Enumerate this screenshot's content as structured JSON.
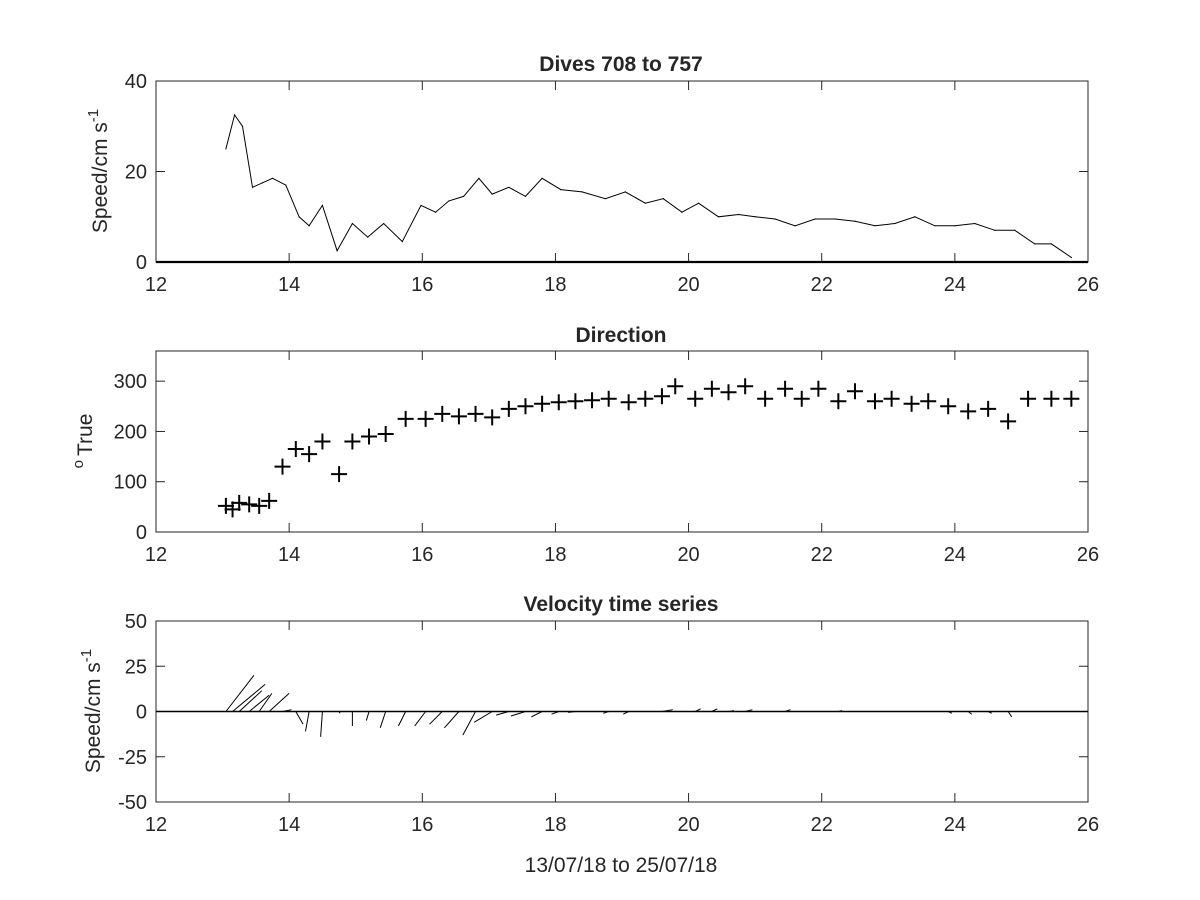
{
  "chart_data": [
    {
      "type": "line",
      "title": "Dives 708 to 757",
      "ylabel": "Speed/cm s",
      "ylabel_superscript": "-1",
      "xlabel": "",
      "xlim": [
        12,
        26
      ],
      "ylim": [
        0,
        40
      ],
      "xticks": [
        "12",
        "14",
        "16",
        "18",
        "20",
        "22",
        "24",
        "26"
      ],
      "yticks": [
        "0",
        "20",
        "40"
      ],
      "grid": false,
      "color": "#000000",
      "series": [
        {
          "x": [
            13.05,
            13.18,
            13.3,
            13.45,
            13.6,
            13.75,
            13.95,
            14.15,
            14.3,
            14.5,
            14.72,
            14.95,
            15.18,
            15.42,
            15.7,
            15.98,
            16.2,
            16.4,
            16.62,
            16.85,
            17.05,
            17.3,
            17.55,
            17.8,
            18.08,
            18.4,
            18.75,
            19.05,
            19.35,
            19.62,
            19.9,
            20.15,
            20.45,
            20.75,
            21.0,
            21.3,
            21.6,
            21.9,
            22.2,
            22.5,
            22.8,
            23.1,
            23.4,
            23.7,
            24.0,
            24.3,
            24.6,
            24.9,
            25.2,
            25.45,
            25.75
          ],
          "values": [
            25,
            32.5,
            30,
            16.5,
            17.5,
            18.5,
            17,
            10,
            8,
            12.5,
            2.5,
            8.5,
            5.5,
            8.5,
            4.5,
            12.5,
            11,
            13.5,
            14.5,
            18.5,
            15,
            16.5,
            14.5,
            18.5,
            16,
            15.5,
            14,
            15.5,
            13,
            14,
            11,
            13,
            10,
            10.5,
            10,
            9.5,
            8,
            9.5,
            9.5,
            9,
            8,
            8.5,
            10,
            8,
            8,
            8.5,
            7,
            7,
            4,
            4,
            1
          ]
        }
      ]
    },
    {
      "type": "scatter",
      "title": "Direction",
      "ylabel": "True",
      "ylabel_prefix_superscript": "o",
      "xlabel": "",
      "xlim": [
        12,
        26
      ],
      "ylim": [
        0,
        360
      ],
      "xticks": [
        "12",
        "14",
        "16",
        "18",
        "20",
        "22",
        "24",
        "26"
      ],
      "yticks": [
        "0",
        "100",
        "200",
        "300"
      ],
      "grid": false,
      "marker": "+",
      "color": "#000000",
      "series": [
        {
          "x": [
            13.05,
            13.15,
            13.25,
            13.4,
            13.55,
            13.7,
            13.9,
            14.1,
            14.3,
            14.5,
            14.75,
            14.95,
            15.2,
            15.45,
            15.75,
            16.05,
            16.3,
            16.55,
            16.8,
            17.05,
            17.3,
            17.55,
            17.8,
            18.05,
            18.3,
            18.55,
            18.8,
            19.1,
            19.35,
            19.6,
            19.8,
            20.1,
            20.35,
            20.6,
            20.85,
            21.15,
            21.45,
            21.7,
            21.95,
            22.25,
            22.5,
            22.8,
            23.05,
            23.35,
            23.6,
            23.9,
            24.2,
            24.5,
            24.8,
            25.1,
            25.45,
            25.75
          ],
          "values": [
            52,
            45,
            58,
            55,
            52,
            62,
            130,
            165,
            155,
            180,
            115,
            180,
            190,
            195,
            225,
            225,
            235,
            230,
            235,
            228,
            245,
            250,
            255,
            258,
            260,
            262,
            265,
            258,
            265,
            270,
            290,
            265,
            285,
            278,
            290,
            265,
            285,
            265,
            285,
            260,
            280,
            260,
            265,
            255,
            260,
            250,
            240,
            245,
            220,
            265,
            265,
            265
          ]
        }
      ]
    },
    {
      "type": "quiver",
      "title": "Velocity time series",
      "ylabel": "Speed/cm s",
      "ylabel_superscript": "-1",
      "xlabel": "13/07/18 to 25/07/18",
      "xlim": [
        12,
        26
      ],
      "ylim": [
        -50,
        50
      ],
      "xticks": [
        "12",
        "14",
        "16",
        "18",
        "20",
        "22",
        "24",
        "26"
      ],
      "yticks": [
        "-50",
        "-25",
        "0",
        "25",
        "50"
      ],
      "grid": false,
      "zero_line": true,
      "color": "#000000",
      "series": [
        {
          "x": [
            13.05,
            13.15,
            13.25,
            13.4,
            13.55,
            13.7,
            13.9,
            14.1,
            14.3,
            14.5,
            14.75,
            14.95,
            15.2,
            15.45,
            15.75,
            16.05,
            16.3,
            16.55,
            16.8,
            17.05,
            17.3,
            17.55,
            17.8,
            18.05,
            18.3,
            18.55,
            18.8,
            19.1,
            19.35,
            19.6,
            19.8,
            20.1,
            20.35,
            20.6,
            20.85,
            21.15,
            21.45,
            21.7,
            21.95,
            22.25,
            22.5,
            22.8,
            23.05,
            23.35,
            23.6,
            23.9,
            24.2,
            24.5,
            24.8
          ],
          "u": [
            15.5,
            18,
            12.5,
            11,
            7,
            11,
            5,
            4,
            -2,
            -1,
            0.5,
            0,
            -1.5,
            -3,
            -4,
            -6,
            -7,
            -8,
            -7,
            -10,
            -7,
            -8,
            -6,
            -4,
            -4,
            -4,
            -3,
            -3,
            -2,
            6,
            0,
            3,
            3,
            3,
            4,
            3,
            3,
            3,
            2,
            2,
            3,
            2,
            2,
            3,
            2,
            2,
            2,
            2,
            2
          ],
          "v": [
            20,
            15,
            11.5,
            9,
            10,
            10,
            1,
            -7,
            -11,
            -14,
            -1,
            -8,
            -5,
            -9,
            -8,
            -8,
            -7,
            -9,
            -13,
            -6,
            -2,
            -2.5,
            -3,
            -1.5,
            -0.5,
            0,
            -1,
            -1.5,
            0,
            1,
            0,
            1.5,
            1.5,
            0.5,
            1,
            0,
            1,
            0,
            0,
            0.5,
            0,
            0,
            0,
            0,
            0,
            -1,
            -1.5,
            -1,
            -3
          ]
        }
      ]
    }
  ]
}
